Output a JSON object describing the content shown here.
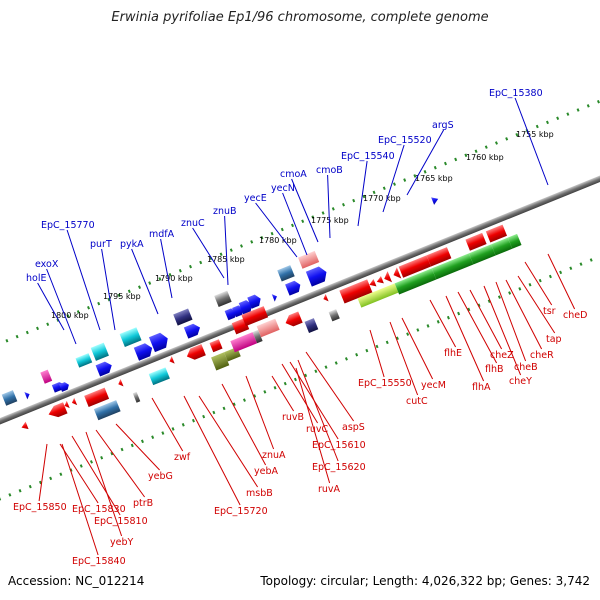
{
  "title": "Erwinia pyrifoliae Ep1/96 chromosome, complete genome",
  "footer": {
    "accession": "Accession: NC_012214",
    "stats": "Topology: circular; Length: 4,026,322 bp; Genes: 3,742"
  },
  "colors": {
    "forward_label": "#0000c8",
    "reverse_label": "#d00000",
    "track_dots": "#2a8a2a",
    "backbone": "#808080"
  },
  "kbp_ticks": [
    "1800 kbp",
    "1795 kbp",
    "1790 kbp",
    "1785 kbp",
    "1780 kbp",
    "1775 kbp",
    "1770 kbp",
    "1765 kbp",
    "1760 kbp",
    "1755 kbp"
  ],
  "genes_upper": [
    "holE",
    "exoX",
    "EpC_15770",
    "purT",
    "pykA",
    "mdfA",
    "znuC",
    "znuB",
    "yecE",
    "yecN",
    "cmoA",
    "cmoB",
    "EpC_15540",
    "EpC_15520",
    "argS",
    "EpC_15380"
  ],
  "genes_lower": [
    "EpC_15850",
    "EpC_15830",
    "EpC_15810",
    "EpC_15840",
    "yebY",
    "ptrB",
    "yebG",
    "zwf",
    "msbB",
    "EpC_15720",
    "yebA",
    "znuA",
    "ruvB",
    "ruvC",
    "EpC_15610",
    "EpC_15620",
    "ruvA",
    "aspS",
    "EpC_15550",
    "cutC",
    "yecM",
    "flhE",
    "flhA",
    "flhB",
    "cheZ",
    "cheY",
    "cheB",
    "cheR",
    "tap",
    "tsr",
    "cheD"
  ]
}
